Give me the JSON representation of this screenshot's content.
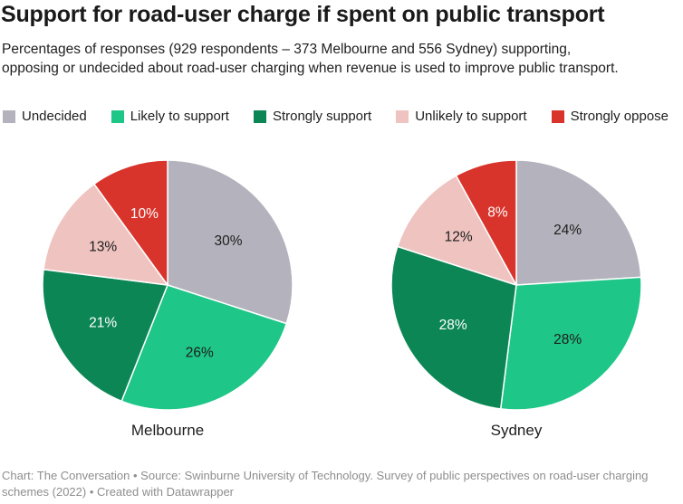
{
  "header": {
    "title": "Support for road-user charge if spent on public transport",
    "subtitle": "Percentages of responses (929 respondents – 373 Melbourne and 556 Sydney) supporting, opposing or undecided about road-user charging when revenue is used to improve public transport."
  },
  "legend": {
    "position": "top",
    "items": [
      {
        "label": "Undecided",
        "color": "#b4b3bd"
      },
      {
        "label": "Likely to support",
        "color": "#1ec687"
      },
      {
        "label": "Strongly support",
        "color": "#0d8656"
      },
      {
        "label": "Unlikely to support",
        "color": "#eec3c0"
      },
      {
        "label": "Strongly oppose",
        "color": "#d8342c"
      }
    ]
  },
  "chart_data": [
    {
      "type": "pie",
      "title": "Melbourne",
      "categories": [
        "Undecided",
        "Likely to support",
        "Strongly support",
        "Unlikely to support",
        "Strongly oppose"
      ],
      "values": [
        30,
        26,
        21,
        13,
        10
      ],
      "labels": [
        "30%",
        "26%",
        "21%",
        "13%",
        "10%"
      ],
      "colors": [
        "#b4b3bd",
        "#1ec687",
        "#0d8656",
        "#eec3c0",
        "#d8342c"
      ],
      "label_colors": [
        "#1d1d1d",
        "#1d1d1d",
        "#ffffff",
        "#1d1d1d",
        "#ffffff"
      ],
      "start_angle_deg": 0,
      "direction": "clockwise"
    },
    {
      "type": "pie",
      "title": "Sydney",
      "categories": [
        "Undecided",
        "Likely to support",
        "Strongly support",
        "Unlikely to support",
        "Strongly oppose"
      ],
      "values": [
        24,
        28,
        28,
        12,
        8
      ],
      "labels": [
        "24%",
        "28%",
        "28%",
        "12%",
        "8%"
      ],
      "colors": [
        "#b4b3bd",
        "#1ec687",
        "#0d8656",
        "#eec3c0",
        "#d8342c"
      ],
      "label_colors": [
        "#1d1d1d",
        "#1d1d1d",
        "#ffffff",
        "#1d1d1d",
        "#ffffff"
      ],
      "start_angle_deg": 0,
      "direction": "clockwise"
    }
  ],
  "footer": {
    "credit": "Chart: The Conversation • Source: Swinburne University of Technology. Survey of public perspectives on road-user charging schemes (2022) • Created with Datawrapper"
  }
}
